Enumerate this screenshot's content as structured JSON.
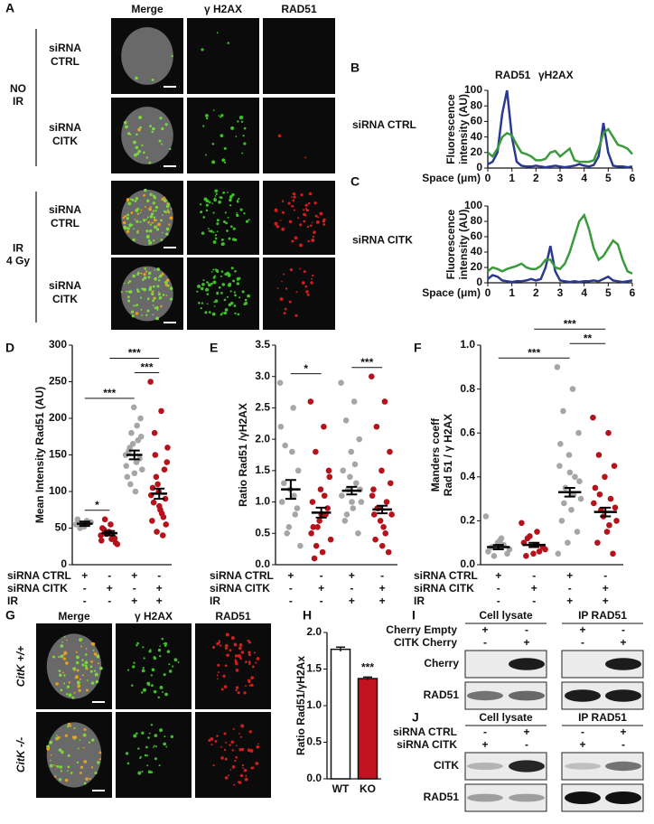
{
  "panel_a": {
    "label": "A",
    "columns": [
      "Merge",
      "γ H2AX",
      "RAD51"
    ],
    "groups": [
      {
        "label": [
          "NO",
          "IR"
        ],
        "rows": [
          [
            "siRNA",
            "CTRL"
          ],
          [
            "siRNA",
            "CITK"
          ]
        ]
      },
      {
        "label": [
          "IR",
          "4 Gy"
        ],
        "rows": [
          [
            "siRNA",
            "CTRL"
          ],
          [
            "siRNA",
            "CITK"
          ]
        ]
      }
    ]
  },
  "chart_data": [
    {
      "label": "B",
      "type": "line",
      "annotation": "siRNA CTRL",
      "ylabel": [
        "Fluorescence",
        "intensity (AU)"
      ],
      "xlabel": "Space (μm)",
      "x": [
        0,
        0.2,
        0.4,
        0.6,
        0.8,
        1,
        1.2,
        1.4,
        1.6,
        1.8,
        2,
        2.2,
        2.4,
        2.6,
        2.8,
        3,
        3.2,
        3.4,
        3.6,
        3.8,
        4,
        4.2,
        4.4,
        4.6,
        4.8,
        5,
        5.2,
        5.4,
        5.6,
        5.8,
        6
      ],
      "xlim": [
        0,
        6
      ],
      "xticks": [
        0,
        1,
        2,
        3,
        4,
        5,
        6
      ],
      "ylim": [
        0,
        100
      ],
      "yticks": [
        0,
        20,
        40,
        60,
        80,
        100
      ],
      "legend": true,
      "series": [
        {
          "name": "RAD51",
          "color": "#2b3990",
          "values": [
            5,
            8,
            20,
            70,
            100,
            40,
            8,
            3,
            2,
            2,
            3,
            2,
            1,
            2,
            3,
            2,
            1,
            2,
            3,
            5,
            3,
            2,
            4,
            15,
            58,
            20,
            3,
            2,
            2,
            1,
            2
          ]
        },
        {
          "name": "γH2AX",
          "color": "#3b9a3b",
          "values": [
            20,
            15,
            25,
            40,
            45,
            42,
            30,
            20,
            18,
            15,
            10,
            10,
            12,
            20,
            22,
            15,
            20,
            25,
            10,
            8,
            8,
            8,
            10,
            25,
            45,
            50,
            40,
            30,
            28,
            25,
            18
          ]
        }
      ]
    },
    {
      "label": "C",
      "type": "line",
      "annotation": "siRNA CITK",
      "ylabel": [
        "Fluorescence",
        "intensity (AU)"
      ],
      "xlabel": "Space (μm)",
      "x": [
        0,
        0.2,
        0.4,
        0.6,
        0.8,
        1,
        1.2,
        1.4,
        1.6,
        1.8,
        2,
        2.2,
        2.4,
        2.6,
        2.8,
        3,
        3.2,
        3.4,
        3.6,
        3.8,
        4,
        4.2,
        4.4,
        4.6,
        4.8,
        5,
        5.2,
        5.4,
        5.6,
        5.8,
        6
      ],
      "xlim": [
        0,
        6
      ],
      "xticks": [
        0,
        1,
        2,
        3,
        4,
        5,
        6
      ],
      "ylim": [
        0,
        100
      ],
      "yticks": [
        0,
        20,
        40,
        60,
        80,
        100
      ],
      "legend": false,
      "series": [
        {
          "name": "RAD51",
          "color": "#2b3990",
          "values": [
            5,
            10,
            8,
            3,
            2,
            1,
            2,
            2,
            3,
            5,
            3,
            5,
            20,
            48,
            15,
            3,
            2,
            1,
            2,
            1,
            2,
            2,
            3,
            2,
            5,
            8,
            3,
            2,
            1,
            2,
            3
          ]
        },
        {
          "name": "γH2AX",
          "color": "#3b9a3b",
          "values": [
            15,
            20,
            18,
            15,
            18,
            20,
            22,
            25,
            20,
            18,
            18,
            22,
            30,
            30,
            20,
            18,
            25,
            40,
            60,
            80,
            88,
            70,
            45,
            30,
            35,
            45,
            55,
            50,
            30,
            15,
            12
          ]
        }
      ]
    },
    {
      "label": "D",
      "type": "strip",
      "ylabel": "Mean Intensity Rad51 (AU)",
      "ylim": [
        0,
        300
      ],
      "yticks": [
        0,
        50,
        100,
        150,
        200,
        250,
        300
      ],
      "groups": [
        {
          "color": "#a6a6a6",
          "values": [
            55,
            60,
            50,
            58,
            52,
            62,
            57,
            54
          ],
          "mean": 56,
          "sem": 3
        },
        {
          "color": "#b5121b",
          "values": [
            40,
            35,
            62,
            30,
            45,
            50,
            38,
            42,
            28,
            55,
            48,
            36,
            44,
            33
          ],
          "mean": 43,
          "sem": 3
        },
        {
          "color": "#a6a6a6",
          "values": [
            150,
            140,
            160,
            200,
            215,
            120,
            170,
            180,
            130,
            100,
            155,
            145,
            165,
            135,
            190,
            110,
            175,
            125
          ],
          "mean": 150,
          "sem": 6
        },
        {
          "color": "#b5121b",
          "values": [
            250,
            210,
            180,
            90,
            100,
            60,
            40,
            120,
            140,
            75,
            85,
            130,
            110,
            95,
            70,
            150,
            55,
            80,
            105,
            65,
            45,
            160
          ],
          "mean": 97,
          "sem": 7
        }
      ],
      "brackets": [
        {
          "groups": [
            0,
            1
          ],
          "label": "*"
        },
        {
          "groups": [
            0,
            2
          ],
          "label": "***"
        },
        {
          "groups": [
            2,
            3
          ],
          "label": "***"
        },
        {
          "groups": [
            1,
            3
          ],
          "label": "***"
        }
      ],
      "table": [
        {
          "name": "siRNA CTRL",
          "marks": [
            "+",
            "-",
            "+",
            "-"
          ]
        },
        {
          "name": "siRNA CITK",
          "marks": [
            "-",
            "+",
            "-",
            "+"
          ]
        },
        {
          "name": "IR",
          "marks": [
            "-",
            "-",
            "+",
            "+"
          ]
        }
      ]
    },
    {
      "label": "E",
      "type": "strip",
      "ylabel": "Ratio Rad51 /γH2AX",
      "ylim": [
        0,
        3.5
      ],
      "yticks": [
        {
          "value": 0,
          "label": "0.0"
        },
        0.5,
        {
          "value": 1,
          "label": "1.0"
        },
        1.5,
        {
          "value": 2,
          "label": "2.0"
        },
        2.5,
        {
          "value": 3,
          "label": "3.0"
        },
        3.5
      ],
      "groups": [
        {
          "color": "#a6a6a6",
          "values": [
            2.9,
            2.5,
            1.9,
            1.5,
            1.2,
            1.0,
            0.8,
            0.5,
            0.3,
            1.8,
            1.3,
            0.9,
            0.6,
            2.2,
            1.1
          ],
          "mean": 1.2,
          "sem": 0.15
        },
        {
          "color": "#b5121b",
          "values": [
            2.6,
            2.2,
            1.8,
            1.5,
            1.2,
            1.0,
            0.8,
            0.6,
            0.4,
            0.2,
            0.1,
            0.9,
            0.7,
            0.5,
            1.1,
            0.3,
            1.4,
            0.8,
            0.6
          ],
          "mean": 0.83,
          "sem": 0.08
        },
        {
          "color": "#a6a6a6",
          "values": [
            2.9,
            2.6,
            2.3,
            2.0,
            1.8,
            1.5,
            1.3,
            1.2,
            1.0,
            0.9,
            0.7,
            0.5,
            1.4,
            1.1,
            1.6,
            0.8,
            1.2,
            1.0
          ],
          "mean": 1.18,
          "sem": 0.06
        },
        {
          "color": "#b5121b",
          "values": [
            3.0,
            2.6,
            2.2,
            1.8,
            1.5,
            1.2,
            1.0,
            0.9,
            0.8,
            0.6,
            0.4,
            0.2,
            0.7,
            1.1,
            0.5,
            0.9,
            1.3,
            0.3,
            0.8
          ],
          "mean": 0.88,
          "sem": 0.06
        }
      ],
      "brackets": [
        {
          "groups": [
            0,
            1
          ],
          "label": "*"
        },
        {
          "groups": [
            2,
            3
          ],
          "label": "***"
        }
      ],
      "table": [
        {
          "name": "siRNA CTRL",
          "marks": [
            "+",
            "-",
            "+",
            "-"
          ]
        },
        {
          "name": "siRNA CITK",
          "marks": [
            "-",
            "+",
            "-",
            "+"
          ]
        },
        {
          "name": "IR",
          "marks": [
            "-",
            "-",
            "+",
            "+"
          ]
        }
      ]
    },
    {
      "label": "F",
      "type": "strip",
      "ylabel": [
        "Manders coeff",
        "Rad 51 / γ H2AX"
      ],
      "ylim": [
        0,
        1
      ],
      "yticks": [
        {
          "value": 0,
          "label": "0.0"
        },
        0.2,
        0.4,
        0.6,
        0.8,
        {
          "value": 1,
          "label": "1.0"
        }
      ],
      "groups": [
        {
          "color": "#a6a6a6",
          "values": [
            0.22,
            0.12,
            0.08,
            0.05,
            0.1,
            0.06,
            0.09,
            0.04,
            0.07,
            0.11
          ],
          "mean": 0.08,
          "sem": 0.01
        },
        {
          "color": "#b5121b",
          "values": [
            0.19,
            0.15,
            0.12,
            0.08,
            0.05,
            0.1,
            0.06,
            0.13,
            0.07,
            0.09,
            0.04
          ],
          "mean": 0.09,
          "sem": 0.01
        },
        {
          "color": "#a6a6a6",
          "values": [
            0.9,
            0.8,
            0.7,
            0.6,
            0.5,
            0.45,
            0.4,
            0.35,
            0.3,
            0.25,
            0.2,
            0.15,
            0.1,
            0.05,
            0.32,
            0.28,
            0.38,
            0.42,
            0.55
          ],
          "mean": 0.33,
          "sem": 0.02
        },
        {
          "color": "#b5121b",
          "values": [
            0.67,
            0.6,
            0.5,
            0.45,
            0.4,
            0.35,
            0.3,
            0.25,
            0.2,
            0.15,
            0.1,
            0.05,
            0.22,
            0.28,
            0.18,
            0.32,
            0.26
          ],
          "mean": 0.24,
          "sem": 0.02
        }
      ],
      "brackets": [
        {
          "groups": [
            0,
            2
          ],
          "label": "***"
        },
        {
          "groups": [
            2,
            3
          ],
          "label": "**"
        },
        {
          "groups": [
            1,
            3
          ],
          "label": "***"
        }
      ],
      "table": [
        {
          "name": "siRNA CTRL",
          "marks": [
            "+",
            "-",
            "+",
            "-"
          ]
        },
        {
          "name": "siRNA CITK",
          "marks": [
            "-",
            "+",
            "-",
            "+"
          ]
        },
        {
          "name": "IR",
          "marks": [
            "-",
            "-",
            "+",
            "+"
          ]
        }
      ]
    },
    {
      "label": "H",
      "type": "bar",
      "ylabel": "Ratio Rad51/γH2Ax",
      "categories": [
        "WT",
        "KO"
      ],
      "values": [
        1.77,
        1.37
      ],
      "errors": [
        0.03,
        0.02
      ],
      "colors": [
        "#ffffff",
        "#c1121f"
      ],
      "annotation": "***",
      "ylim": [
        0,
        2
      ],
      "yticks": [
        {
          "value": 0,
          "label": "0.0"
        },
        0.5,
        {
          "value": 1,
          "label": "1.0"
        },
        1.5,
        {
          "value": 2,
          "label": "2.0"
        }
      ]
    }
  ],
  "panel_g": {
    "label": "G",
    "columns": [
      "Merge",
      "γ H2AX",
      "RAD51"
    ],
    "rows": [
      "CitK +/+",
      "CitK -/-"
    ]
  },
  "panel_i": {
    "label": "I",
    "headers": [
      "Cell lysate",
      "IP RAD51"
    ],
    "conditions": [
      {
        "name": "Cherry Empty",
        "signs": [
          "+",
          "-",
          "+",
          "-"
        ]
      },
      {
        "name": "CITK Cherry",
        "signs": [
          "-",
          "+",
          "-",
          "+"
        ]
      }
    ],
    "bands": [
      "Cherry",
      "RAD51"
    ]
  },
  "panel_j": {
    "label": "J",
    "headers": [
      "Cell lysate",
      "IP RAD51"
    ],
    "conditions": [
      {
        "name": "siRNA CTRL",
        "signs": [
          "-",
          "+",
          "-",
          "+"
        ]
      },
      {
        "name": "siRNA CITK",
        "signs": [
          "+",
          "-",
          "+",
          "-"
        ]
      }
    ],
    "bands": [
      "CITK",
      "RAD51"
    ]
  }
}
